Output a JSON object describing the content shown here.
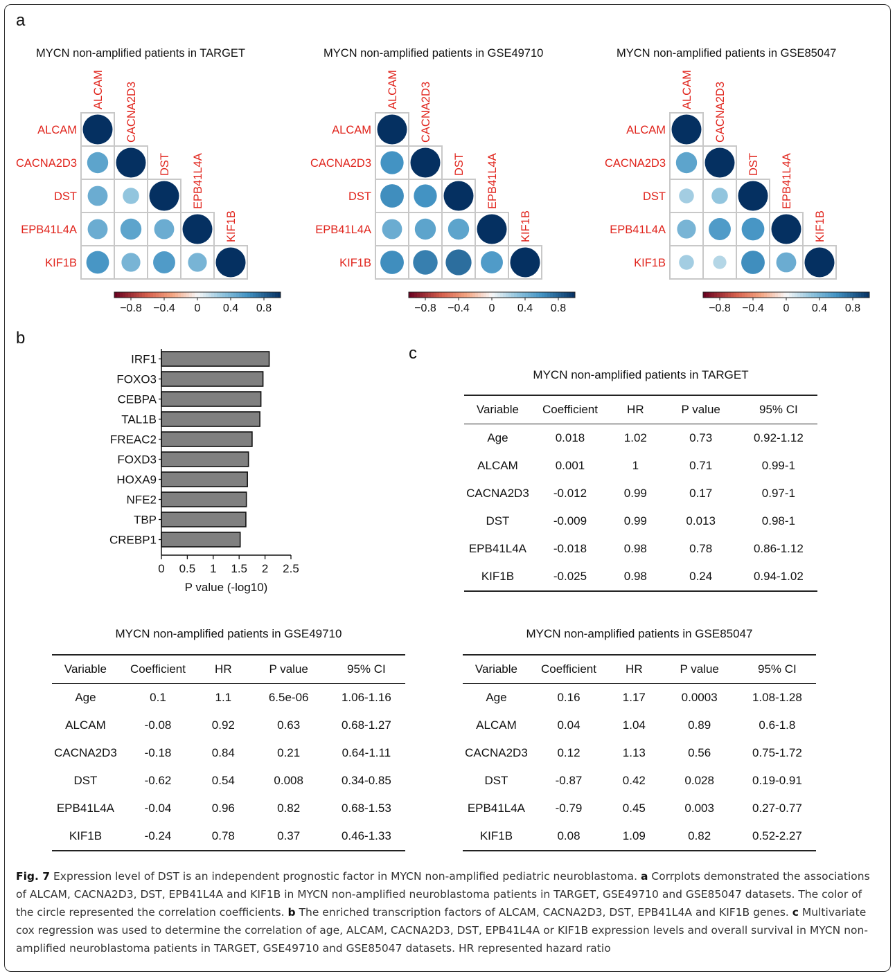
{
  "panel_labels": {
    "a": "a",
    "b": "b",
    "c": "c"
  },
  "chart_data": [
    {
      "type": "heatmap",
      "title": "MYCN non-amplified patients in TARGET",
      "genes": [
        "ALCAM",
        "CACNA2D3",
        "DST",
        "EPB41L4A",
        "KIF1B"
      ],
      "matrix": [
        [
          1,
          0.5,
          0.45,
          0.45,
          0.58
        ],
        [
          0.5,
          1,
          0.3,
          0.5,
          0.4
        ],
        [
          0.45,
          0.3,
          1,
          0.45,
          0.55
        ],
        [
          0.45,
          0.5,
          0.45,
          1,
          0.4
        ],
        [
          0.58,
          0.4,
          0.55,
          0.4,
          1
        ]
      ],
      "color_range": [
        -1,
        1
      ],
      "colorbar_ticks": [
        "−0.8",
        "−0.4",
        "0",
        "0.4",
        "0.8"
      ],
      "colorbar_tick_values": [
        -0.8,
        -0.4,
        0,
        0.4,
        0.8
      ]
    },
    {
      "type": "heatmap",
      "title": "MYCN non-amplified patients in GSE49710",
      "genes": [
        "ALCAM",
        "CACNA2D3",
        "DST",
        "EPB41L4A",
        "KIF1B"
      ],
      "matrix": [
        [
          1,
          0.6,
          0.62,
          0.45,
          0.62
        ],
        [
          0.6,
          1,
          0.6,
          0.5,
          0.68
        ],
        [
          0.62,
          0.6,
          1,
          0.5,
          0.75
        ],
        [
          0.45,
          0.5,
          0.5,
          1,
          0.55
        ],
        [
          0.62,
          0.68,
          0.75,
          0.55,
          1
        ]
      ],
      "color_range": [
        -1,
        1
      ],
      "colorbar_ticks": [
        "−0.8",
        "−0.4",
        "0",
        "0.4",
        "0.8"
      ],
      "colorbar_tick_values": [
        -0.8,
        -0.4,
        0,
        0.4,
        0.8
      ]
    },
    {
      "type": "heatmap",
      "title": "MYCN non-amplified patients in GSE85047",
      "genes": [
        "ALCAM",
        "CACNA2D3",
        "DST",
        "EPB41L4A",
        "KIF1B"
      ],
      "matrix": [
        [
          1,
          0.5,
          0.25,
          0.4,
          0.25
        ],
        [
          0.5,
          1,
          0.3,
          0.55,
          0.2
        ],
        [
          0.25,
          0.3,
          1,
          0.58,
          0.62
        ],
        [
          0.4,
          0.55,
          0.58,
          1,
          0.45
        ],
        [
          0.25,
          0.2,
          0.62,
          0.45,
          1
        ]
      ],
      "color_range": [
        -1,
        1
      ],
      "colorbar_ticks": [
        "−0.8",
        "−0.4",
        "0",
        "0.4",
        "0.8"
      ],
      "colorbar_tick_values": [
        -0.8,
        -0.4,
        0,
        0.4,
        0.8
      ]
    },
    {
      "type": "bar",
      "orientation": "horizontal",
      "categories": [
        "IRF1",
        "FOXO3",
        "CEBPA",
        "TAL1B",
        "FREAC2",
        "FOXD3",
        "HOXA9",
        "NFE2",
        "TBP",
        "CREBP1"
      ],
      "values": [
        2.08,
        1.96,
        1.92,
        1.9,
        1.75,
        1.68,
        1.66,
        1.64,
        1.63,
        1.52
      ],
      "xlabel": "P value (-log10)",
      "xlim": [
        0,
        2.5
      ],
      "xticks": [
        "0",
        "0.5",
        "1",
        "1.5",
        "2",
        "2.5"
      ],
      "color": "#808080"
    },
    {
      "type": "table",
      "title": "MYCN non-amplified patients in TARGET",
      "columns": [
        "Variable",
        "Coefficient",
        "HR",
        "P value",
        "95% CI"
      ],
      "rows": [
        [
          "Age",
          "0.018",
          "1.02",
          "0.73",
          "0.92-1.12"
        ],
        [
          "ALCAM",
          "0.001",
          "1",
          "0.71",
          "0.99-1"
        ],
        [
          "CACNA2D3",
          "-0.012",
          "0.99",
          "0.17",
          "0.97-1"
        ],
        [
          "DST",
          "-0.009",
          "0.99",
          "0.013",
          "0.98-1"
        ],
        [
          "EPB41L4A",
          "-0.018",
          "0.98",
          "0.78",
          "0.86-1.12"
        ],
        [
          "KIF1B",
          "-0.025",
          "0.98",
          "0.24",
          "0.94-1.02"
        ]
      ]
    },
    {
      "type": "table",
      "title": "MYCN non-amplified patients in GSE49710",
      "columns": [
        "Variable",
        "Coefficient",
        "HR",
        "P value",
        "95% CI"
      ],
      "rows": [
        [
          "Age",
          "0.1",
          "1.1",
          "6.5e-06",
          "1.06-1.16"
        ],
        [
          "ALCAM",
          "-0.08",
          "0.92",
          "0.63",
          "0.68-1.27"
        ],
        [
          "CACNA2D3",
          "-0.18",
          "0.84",
          "0.21",
          "0.64-1.11"
        ],
        [
          "DST",
          "-0.62",
          "0.54",
          "0.008",
          "0.34-0.85"
        ],
        [
          "EPB41L4A",
          "-0.04",
          "0.96",
          "0.82",
          "0.68-1.53"
        ],
        [
          "KIF1B",
          "-0.24",
          "0.78",
          "0.37",
          "0.46-1.33"
        ]
      ]
    },
    {
      "type": "table",
      "title": "MYCN non-amplified patients in GSE85047",
      "columns": [
        "Variable",
        "Coefficient",
        "HR",
        "P value",
        "95% CI"
      ],
      "rows": [
        [
          "Age",
          "0.16",
          "1.17",
          "0.0003",
          "1.08-1.28"
        ],
        [
          "ALCAM",
          "0.04",
          "1.04",
          "0.89",
          "0.6-1.8"
        ],
        [
          "CACNA2D3",
          "0.12",
          "1.13",
          "0.56",
          "0.75-1.72"
        ],
        [
          "DST",
          "-0.87",
          "0.42",
          "0.028",
          "0.19-0.91"
        ],
        [
          "EPB41L4A",
          "-0.79",
          "0.45",
          "0.003",
          "0.27-0.77"
        ],
        [
          "KIF1B",
          "0.08",
          "1.09",
          "0.82",
          "0.52-2.27"
        ]
      ]
    }
  ],
  "caption": {
    "fig_label": "Fig. 7",
    "title": " Expression level of DST is an independent prognostic factor in MYCN non-amplified pediatric neuroblastoma. ",
    "a_label": "a",
    "a_text": " Corrplots demonstrated the associations of ALCAM, CACNA2D3, DST, EPB41L4A and KIF1B in MYCN non-amplified neuroblastoma patients in TARGET, GSE49710 and GSE85047 datasets. The color of the circle represented the correlation coefficients. ",
    "b_label": "b",
    "b_text": " The enriched transcription factors of ALCAM, CACNA2D3, DST, EPB41L4A and KIF1B genes. ",
    "c_label": "c",
    "c_text": " Multivariate cox regression was used to determine the correlation of age, ALCAM, CACNA2D3, DST, EPB41L4A or KIF1B expression levels and overall survival in MYCN non-amplified neuroblastoma patients in TARGET, GSE49710 and GSE85047 datasets. HR represented hazard ratio"
  },
  "colors": {
    "gene_label": "#e0241c",
    "grid": "#c8c8c8"
  }
}
